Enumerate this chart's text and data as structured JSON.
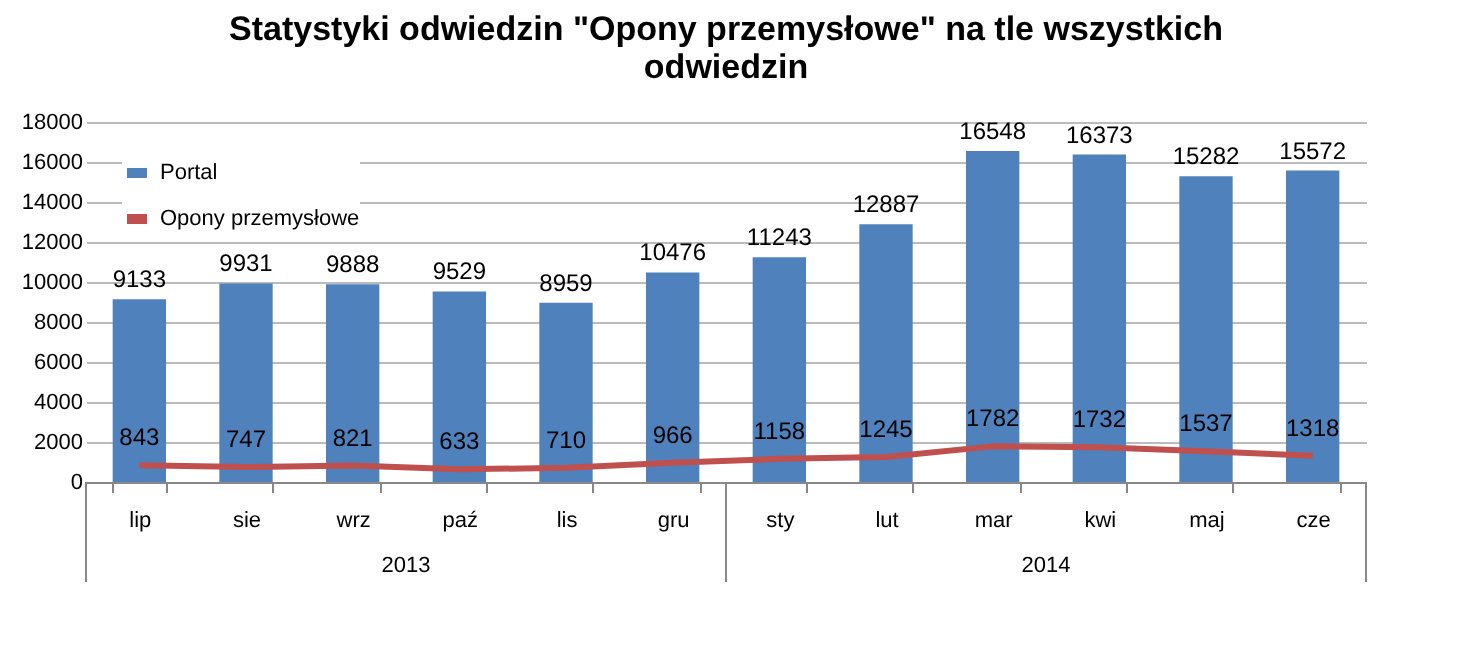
{
  "chart_data": {
    "type": "bar",
    "title": "Statystyki odwiedzin \"Opony przemysłowe\" na tle wszystkich odwiedzin",
    "categories": [
      "lip",
      "sie",
      "wrz",
      "paź",
      "lis",
      "gru",
      "sty",
      "lut",
      "mar",
      "kwi",
      "maj",
      "cze"
    ],
    "series": [
      {
        "name": "Portal",
        "color": "#4f81bd",
        "values": [
          9133,
          9931,
          9888,
          9529,
          8959,
          10476,
          11243,
          12887,
          16548,
          16373,
          15282,
          15572
        ]
      },
      {
        "name": "Opony przemysłowe",
        "type": "line",
        "color": "#c0504d",
        "values": [
          843,
          747,
          821,
          633,
          710,
          966,
          1158,
          1245,
          1782,
          1732,
          1537,
          1318
        ]
      }
    ],
    "annotations": [
      "2013",
      "2014"
    ],
    "ylim": [
      0,
      18000
    ],
    "yticks": [
      0,
      2000,
      4000,
      6000,
      8000,
      10000,
      12000,
      14000,
      16000,
      18000
    ],
    "grid": "y",
    "legend": "top left",
    "data_labels": true,
    "marker": "none",
    "line_style": "solid"
  }
}
